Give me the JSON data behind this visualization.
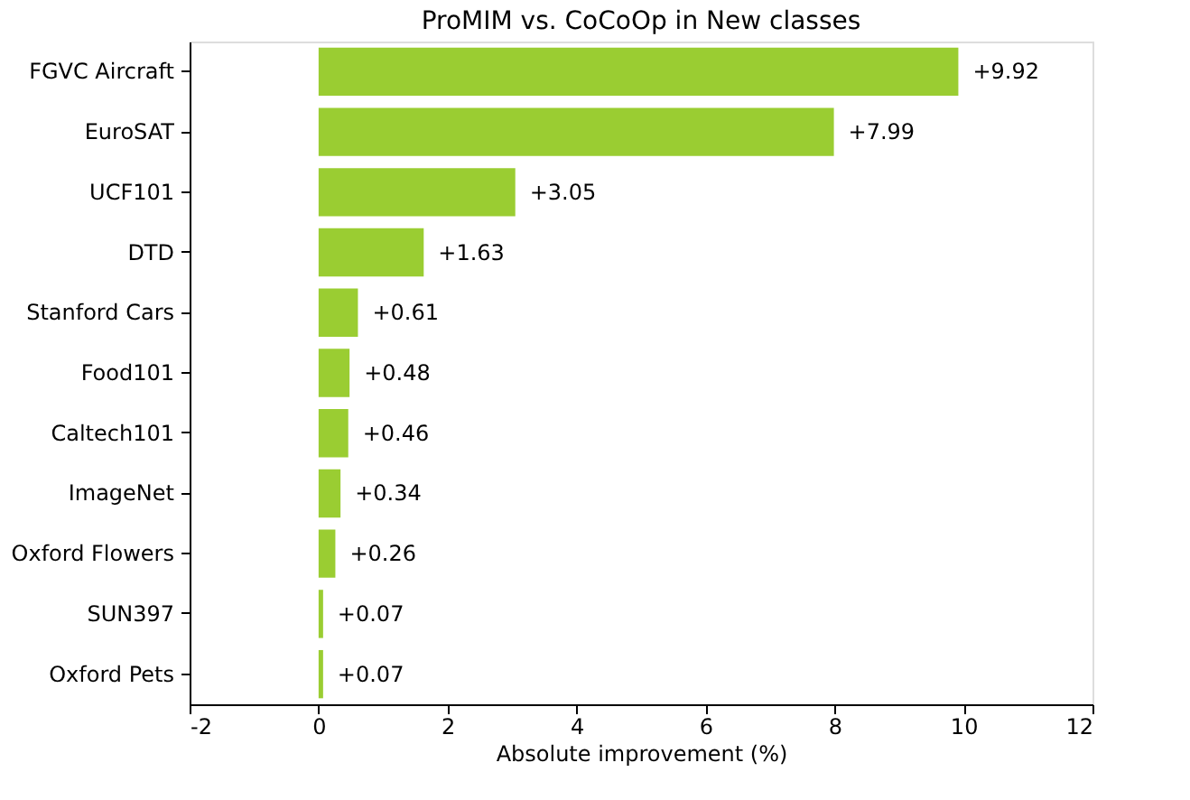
{
  "chart_data": {
    "type": "bar",
    "orientation": "horizontal",
    "title": "ProMIM vs. CoCoOp in New classes",
    "xlabel": "Absolute improvement (%)",
    "categories": [
      "FGVC Aircraft",
      "EuroSAT",
      "UCF101",
      "DTD",
      "Stanford Cars",
      "Food101",
      "Caltech101",
      "ImageNet",
      "Oxford Flowers",
      "SUN397",
      "Oxford Pets"
    ],
    "values": [
      9.92,
      7.99,
      3.05,
      1.63,
      0.61,
      0.48,
      0.46,
      0.34,
      0.26,
      0.07,
      0.07
    ],
    "value_labels": [
      "+9.92",
      "+7.99",
      "+3.05",
      "+1.63",
      "+0.61",
      "+0.48",
      "+0.46",
      "+0.34",
      "+0.26",
      "+0.07",
      "+0.07"
    ],
    "color": "#9acd32",
    "xlim": [
      -2,
      12
    ],
    "xticks": [
      -2,
      0,
      2,
      4,
      6,
      8,
      10,
      12
    ],
    "grid": false
  }
}
